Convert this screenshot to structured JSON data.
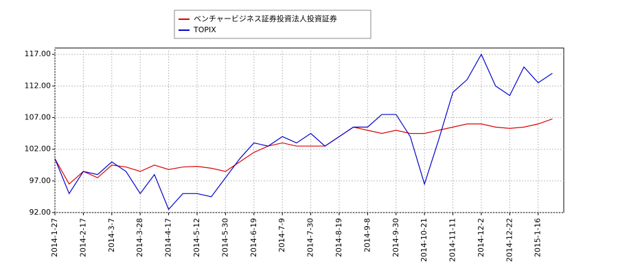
{
  "chart_data": {
    "type": "line",
    "categories": [
      "2014-1-27",
      null,
      "2014-2-17",
      null,
      "2014-3-7",
      null,
      "2014-3-28",
      null,
      "2014-4-17",
      null,
      "2014-5-12",
      null,
      "2014-5-30",
      null,
      "2014-6-19",
      null,
      "2014-7-9",
      null,
      "2014-7-30",
      null,
      "2014-8-19",
      null,
      "2014-9-8",
      null,
      "2014-9-30",
      null,
      "2014-10-21",
      null,
      "2014-11-11",
      null,
      "2014-12-2",
      null,
      "2014-12-22",
      null,
      "2015-1-16",
      null
    ],
    "series": [
      {
        "name": "ベンチャービジネス証券投資法人投資証券",
        "color": "#dd0000",
        "values": [
          100.5,
          96.5,
          98.5,
          97.5,
          99.5,
          99.2,
          98.5,
          99.5,
          98.8,
          99.2,
          99.3,
          99.0,
          98.5,
          100,
          101.5,
          102.5,
          103,
          102.5,
          102.5,
          102.5,
          104,
          105.5,
          105,
          104.5,
          105,
          104.5,
          104.5,
          105,
          105.5,
          106,
          106,
          105.5,
          105.3,
          105.5,
          106,
          106.8
        ]
      },
      {
        "name": "TOPIX",
        "color": "#0000cc",
        "values": [
          100.5,
          95,
          98.5,
          98,
          100,
          98.5,
          95,
          98,
          92.5,
          95,
          95,
          94.5,
          97.5,
          100.5,
          103,
          102.5,
          104,
          103,
          104.5,
          102.5,
          104,
          105.5,
          105.5,
          107.5,
          107.5,
          104,
          96.5,
          103.5,
          111,
          113,
          117,
          112,
          110.5,
          115,
          112.5,
          114
        ]
      }
    ],
    "ylim": [
      92,
      118
    ],
    "yticks": [
      {
        "value": 92,
        "label": "92.00"
      },
      {
        "value": 97,
        "label": "97.00"
      },
      {
        "value": 102,
        "label": "102.00"
      },
      {
        "value": 107,
        "label": "107.00"
      },
      {
        "value": 112,
        "label": "112.00"
      },
      {
        "value": 117,
        "label": "117.00"
      }
    ],
    "grid": true
  }
}
